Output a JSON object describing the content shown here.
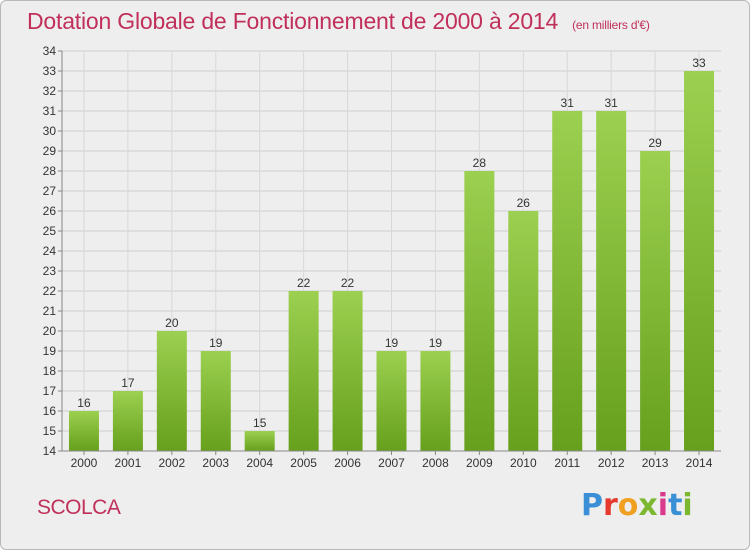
{
  "header": {
    "title": "Dotation Globale de Fonctionnement de 2000 à 2014",
    "unit": "(en milliers d'€)"
  },
  "footer": {
    "commune": "SCOLCA",
    "brand": "Proxiti",
    "brand_colors": [
      "#3b8fd6",
      "#e63a2e",
      "#f0a020",
      "#7cb82f",
      "#d93a8c",
      "#3b8fd6",
      "#7cb82f"
    ]
  },
  "chart_data": {
    "type": "bar",
    "title": "Dotation Globale de Fonctionnement de 2000 à 2014",
    "subtitle": "(en milliers d'€)",
    "categories": [
      "2000",
      "2001",
      "2002",
      "2003",
      "2004",
      "2005",
      "2006",
      "2007",
      "2008",
      "2009",
      "2010",
      "2011",
      "2012",
      "2013",
      "2014"
    ],
    "values": [
      16,
      17,
      20,
      19,
      15,
      22,
      22,
      19,
      19,
      28,
      26,
      31,
      31,
      29,
      33
    ],
    "ylim": [
      14,
      34
    ],
    "yticks": [
      14,
      15,
      16,
      17,
      18,
      19,
      20,
      21,
      22,
      23,
      24,
      25,
      26,
      27,
      28,
      29,
      30,
      31,
      32,
      33,
      34
    ],
    "grid": true,
    "bar_color_top": "#9cd050",
    "bar_color_bottom": "#66a01c"
  }
}
